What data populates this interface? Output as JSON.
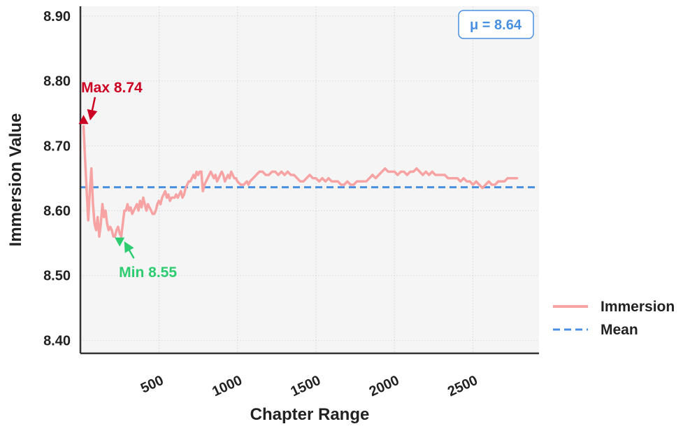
{
  "chart_data": {
    "type": "line",
    "xlabel": "Chapter Range",
    "ylabel": "Immersion Value",
    "xlim": [
      0,
      2920
    ],
    "ylim": [
      8.38,
      8.915
    ],
    "xticks": [
      500,
      1000,
      1500,
      2000,
      2500
    ],
    "xtick_labels": [
      "500",
      "1000",
      "1500",
      "2000",
      "2500"
    ],
    "yticks": [
      8.4,
      8.5,
      8.6,
      8.7,
      8.8,
      8.9
    ],
    "ytick_labels": [
      "8.40",
      "8.50",
      "8.60",
      "8.70",
      "8.80",
      "8.90"
    ],
    "grid": true,
    "legend_position": "outside-right-bottom",
    "series": [
      {
        "name": "Immersion",
        "color": "#f7a3a3",
        "style": "solid",
        "x": [
          20,
          30,
          40,
          50,
          60,
          70,
          80,
          90,
          100,
          110,
          120,
          130,
          140,
          150,
          160,
          170,
          180,
          190,
          200,
          210,
          220,
          230,
          240,
          250,
          260,
          270,
          280,
          290,
          300,
          310,
          320,
          330,
          340,
          350,
          360,
          370,
          380,
          390,
          400,
          410,
          420,
          430,
          440,
          450,
          460,
          470,
          480,
          490,
          500,
          510,
          520,
          530,
          540,
          550,
          560,
          570,
          580,
          590,
          600,
          610,
          620,
          630,
          640,
          650,
          660,
          670,
          680,
          690,
          700,
          710,
          720,
          730,
          740,
          750,
          760,
          770,
          780,
          790,
          800,
          810,
          820,
          830,
          840,
          850,
          860,
          870,
          880,
          890,
          900,
          910,
          920,
          930,
          940,
          950,
          960,
          970,
          980,
          990,
          1000,
          1020,
          1040,
          1060,
          1070,
          1080,
          1100,
          1120,
          1140,
          1160,
          1180,
          1200,
          1220,
          1240,
          1260,
          1280,
          1300,
          1320,
          1340,
          1360,
          1380,
          1400,
          1420,
          1440,
          1460,
          1480,
          1500,
          1520,
          1540,
          1560,
          1580,
          1600,
          1620,
          1640,
          1660,
          1680,
          1700,
          1720,
          1740,
          1760,
          1780,
          1800,
          1820,
          1840,
          1860,
          1880,
          1900,
          1920,
          1940,
          1960,
          1980,
          2000,
          2020,
          2040,
          2060,
          2080,
          2100,
          2120,
          2140,
          2160,
          2180,
          2200,
          2220,
          2240,
          2260,
          2280,
          2300,
          2320,
          2340,
          2360,
          2380,
          2400,
          2420,
          2440,
          2460,
          2480,
          2500,
          2520,
          2540,
          2560,
          2580,
          2600,
          2620,
          2640,
          2660,
          2680,
          2700,
          2720,
          2740,
          2760,
          2780
        ],
        "values": [
          8.73,
          8.68,
          8.63,
          8.585,
          8.63,
          8.665,
          8.61,
          8.58,
          8.57,
          8.59,
          8.56,
          8.58,
          8.61,
          8.59,
          8.6,
          8.58,
          8.57,
          8.575,
          8.57,
          8.56,
          8.56,
          8.57,
          8.575,
          8.565,
          8.56,
          8.58,
          8.6,
          8.6,
          8.61,
          8.6,
          8.605,
          8.595,
          8.6,
          8.605,
          8.61,
          8.6,
          8.615,
          8.605,
          8.62,
          8.61,
          8.6,
          8.61,
          8.605,
          8.6,
          8.595,
          8.595,
          8.6,
          8.61,
          8.615,
          8.61,
          8.62,
          8.625,
          8.63,
          8.62,
          8.625,
          8.615,
          8.62,
          8.62,
          8.62,
          8.625,
          8.62,
          8.625,
          8.63,
          8.62,
          8.625,
          8.635,
          8.64,
          8.645,
          8.645,
          8.65,
          8.655,
          8.65,
          8.66,
          8.655,
          8.66,
          8.66,
          8.63,
          8.64,
          8.645,
          8.65,
          8.655,
          8.66,
          8.655,
          8.65,
          8.655,
          8.645,
          8.65,
          8.655,
          8.66,
          8.655,
          8.645,
          8.65,
          8.655,
          8.65,
          8.66,
          8.655,
          8.65,
          8.65,
          8.645,
          8.64,
          8.64,
          8.645,
          8.64,
          8.645,
          8.65,
          8.655,
          8.66,
          8.66,
          8.655,
          8.655,
          8.66,
          8.66,
          8.655,
          8.66,
          8.655,
          8.66,
          8.655,
          8.655,
          8.65,
          8.645,
          8.645,
          8.65,
          8.655,
          8.65,
          8.65,
          8.645,
          8.65,
          8.645,
          8.65,
          8.645,
          8.645,
          8.645,
          8.64,
          8.64,
          8.645,
          8.64,
          8.64,
          8.645,
          8.645,
          8.645,
          8.645,
          8.65,
          8.655,
          8.65,
          8.655,
          8.66,
          8.665,
          8.66,
          8.66,
          8.66,
          8.655,
          8.66,
          8.66,
          8.655,
          8.66,
          8.66,
          8.665,
          8.66,
          8.655,
          8.66,
          8.655,
          8.66,
          8.655,
          8.655,
          8.655,
          8.655,
          8.65,
          8.65,
          8.65,
          8.65,
          8.645,
          8.65,
          8.645,
          8.645,
          8.64,
          8.645,
          8.64,
          8.635,
          8.64,
          8.645,
          8.64,
          8.64,
          8.645,
          8.645,
          8.645,
          8.65,
          8.65,
          8.65,
          8.65
        ]
      },
      {
        "name": "Mean",
        "color": "#4a90e2",
        "style": "dashed",
        "value": 8.636
      }
    ],
    "annotations": [
      {
        "text": "Max 8.74",
        "x": 20,
        "y": 8.74,
        "color": "#cc0022",
        "marker": "triangle-up",
        "text_x": 200,
        "text_y": 8.79
      },
      {
        "text": "Min 8.55",
        "x": 250,
        "y": 8.552,
        "color": "#2ecc71",
        "marker": "triangle-down",
        "text_x": 430,
        "text_y": 8.505
      },
      {
        "text": "μ = 8.64",
        "color": "#4a90e2",
        "position": "top-right-box"
      }
    ],
    "colors": {
      "plot_bg": "#f5f5f5",
      "grid": "#dddddd",
      "axis": "#333333"
    }
  }
}
